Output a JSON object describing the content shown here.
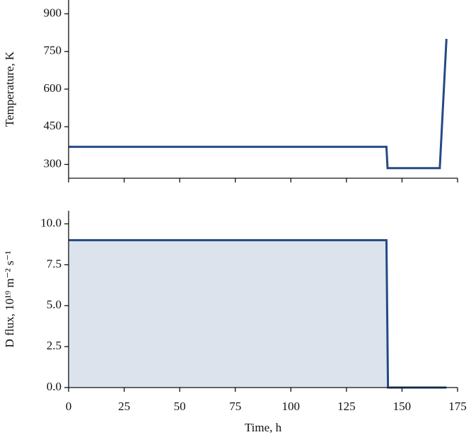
{
  "chart_data": [
    {
      "type": "line",
      "ylabel": "Temperature, K",
      "x": [
        0,
        143,
        143.5,
        167,
        170
      ],
      "series": [
        {
          "name": "Temperature",
          "color": "#234a85",
          "values": [
            370,
            370,
            285,
            285,
            800
          ]
        }
      ],
      "xlim": [
        0,
        175
      ],
      "xticks": [
        0,
        25,
        50,
        75,
        100,
        125,
        150,
        175
      ],
      "ylim": [
        245,
        955
      ],
      "yticks": [
        300,
        450,
        600,
        750,
        900
      ]
    },
    {
      "type": "area",
      "ylabel": "D flux, 10¹⁹ m⁻² s⁻¹",
      "xlabel": "Time, h",
      "x": [
        0,
        143,
        143.7,
        170
      ],
      "series": [
        {
          "name": "D flux",
          "color": "#234a85",
          "fill": "#dde3ed",
          "values": [
            9,
            9,
            0,
            0
          ]
        }
      ],
      "xlim": [
        0,
        175
      ],
      "xticks": [
        0,
        25,
        50,
        75,
        100,
        125,
        150,
        175
      ],
      "ylim": [
        0,
        10.8
      ],
      "yticks": [
        {
          "value": 0,
          "label": "0.0"
        },
        {
          "value": 2.5,
          "label": "2.5"
        },
        {
          "value": 5,
          "label": "5.0"
        },
        {
          "value": 7.5,
          "label": "7.5"
        },
        {
          "value": 10,
          "label": "10.0"
        }
      ]
    }
  ]
}
